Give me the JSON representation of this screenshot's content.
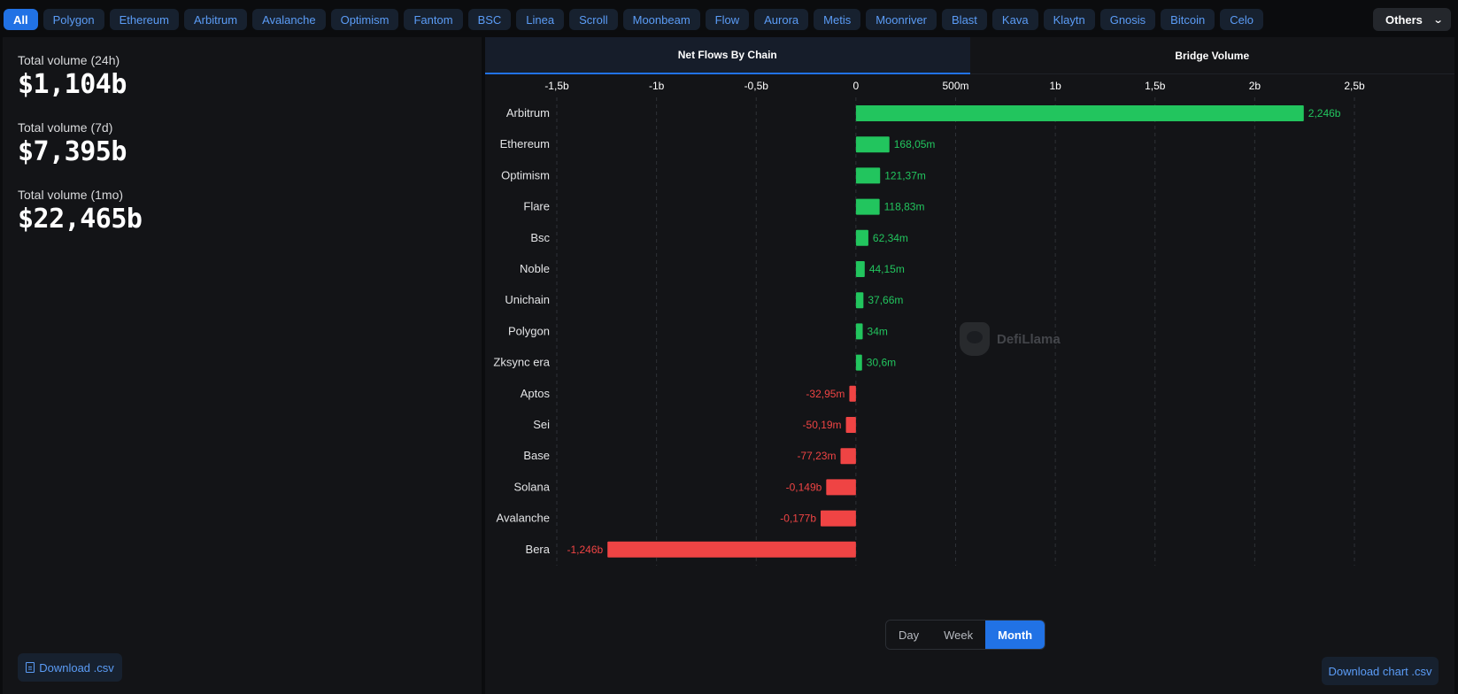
{
  "chain_tabs": [
    "All",
    "Polygon",
    "Ethereum",
    "Arbitrum",
    "Avalanche",
    "Optimism",
    "Fantom",
    "BSC",
    "Linea",
    "Scroll",
    "Moonbeam",
    "Flow",
    "Aurora",
    "Metis",
    "Moonriver",
    "Blast",
    "Kava",
    "Klaytn",
    "Gnosis",
    "Bitcoin",
    "Celo"
  ],
  "active_chain": "All",
  "others_label": "Others",
  "stats": [
    {
      "label": "Total volume (24h)",
      "value": "$1,104b"
    },
    {
      "label": "Total volume (7d)",
      "value": "$7,395b"
    },
    {
      "label": "Total volume (1mo)",
      "value": "$22,465b"
    }
  ],
  "download_csv_label": "Download .csv",
  "chart_tabs": [
    "Net Flows By Chain",
    "Bridge Volume"
  ],
  "active_chart_tab": "Net Flows By Chain",
  "watermark_text": "DefiLlama",
  "range_buttons": [
    "Day",
    "Week",
    "Month"
  ],
  "active_range": "Month",
  "download_chart_label": "Download chart .csv",
  "colors": {
    "accent": "#2172e5",
    "positive": "#22c55e",
    "negative": "#ef4444",
    "link": "#5b9cf6"
  },
  "chart_data": {
    "type": "bar",
    "orientation": "horizontal",
    "title": "",
    "xlabel": "",
    "ylabel": "",
    "xlim": [
      -1.5,
      2.5
    ],
    "x_ticks": [
      {
        "value": -1.5,
        "label": "-1,5b"
      },
      {
        "value": -1,
        "label": "-1b"
      },
      {
        "value": -0.5,
        "label": "-0,5b"
      },
      {
        "value": 0,
        "label": "0"
      },
      {
        "value": 0.5,
        "label": "500m"
      },
      {
        "value": 1,
        "label": "1b"
      },
      {
        "value": 1.5,
        "label": "1,5b"
      },
      {
        "value": 2,
        "label": "2b"
      },
      {
        "value": 2.5,
        "label": "2,5b"
      }
    ],
    "grid": true,
    "categories": [
      "Arbitrum",
      "Ethereum",
      "Optimism",
      "Flare",
      "Bsc",
      "Noble",
      "Unichain",
      "Polygon",
      "Zksync era",
      "Aptos",
      "Sei",
      "Base",
      "Solana",
      "Avalanche",
      "Bera"
    ],
    "values": [
      2.246,
      0.16805,
      0.12137,
      0.11883,
      0.06234,
      0.04415,
      0.03766,
      0.034,
      0.0306,
      -0.03295,
      -0.05019,
      -0.07723,
      -0.149,
      -0.177,
      -1.246
    ],
    "value_labels": [
      "2,246b",
      "168,05m",
      "121,37m",
      "118,83m",
      "62,34m",
      "44,15m",
      "37,66m",
      "34m",
      "30,6m",
      "-32,95m",
      "-50,19m",
      "-77,23m",
      "-0,149b",
      "-0,177b",
      "-1,246b"
    ]
  }
}
